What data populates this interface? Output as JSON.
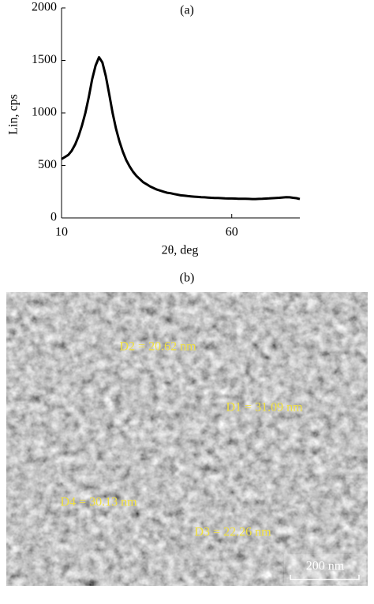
{
  "chart_data": {
    "type": "line",
    "title": "(a)",
    "x_label": "2θ, deg",
    "y_label": "Lin, cps",
    "xlim": [
      10,
      80
    ],
    "ylim": [
      0,
      2000
    ],
    "xticks": [
      10,
      60
    ],
    "yticks": [
      0,
      500,
      1000,
      1500,
      2000
    ],
    "series": [
      {
        "name": null,
        "color": "#000000",
        "x": [
          10,
          11,
          12,
          13,
          14,
          15,
          16,
          17,
          18,
          19,
          20,
          21,
          22,
          23,
          24,
          25,
          26,
          27,
          28,
          29,
          30,
          31,
          32,
          33,
          34,
          35,
          36,
          37,
          38,
          39,
          40,
          41,
          42,
          43,
          44,
          45,
          46,
          47,
          48,
          49,
          50,
          51,
          52,
          53,
          54,
          55,
          56,
          57,
          58,
          59,
          60,
          61,
          62,
          63,
          64,
          65,
          66,
          67,
          68,
          69,
          70,
          71,
          72,
          73,
          74,
          75,
          76,
          77,
          78,
          79,
          80
        ],
        "values": [
          560,
          580,
          600,
          640,
          700,
          780,
          880,
          1000,
          1150,
          1320,
          1450,
          1530,
          1480,
          1350,
          1180,
          1000,
          850,
          730,
          630,
          550,
          490,
          440,
          400,
          370,
          340,
          320,
          300,
          285,
          270,
          260,
          250,
          240,
          235,
          228,
          222,
          215,
          212,
          208,
          205,
          202,
          200,
          198,
          196,
          194,
          192,
          190,
          190,
          188,
          186,
          185,
          185,
          184,
          183,
          182,
          182,
          181,
          180,
          180,
          181,
          182,
          184,
          186,
          188,
          190,
          192,
          195,
          198,
          196,
          192,
          188,
          180
        ]
      }
    ]
  },
  "image": {
    "title": "(b)",
    "labels": [
      "D2 = 20.62 nm",
      "D1 = 31.09 nm",
      "D4 = 30.13 nm",
      "D3 = 22.26 nm"
    ],
    "scale_bar": "200 nm"
  }
}
